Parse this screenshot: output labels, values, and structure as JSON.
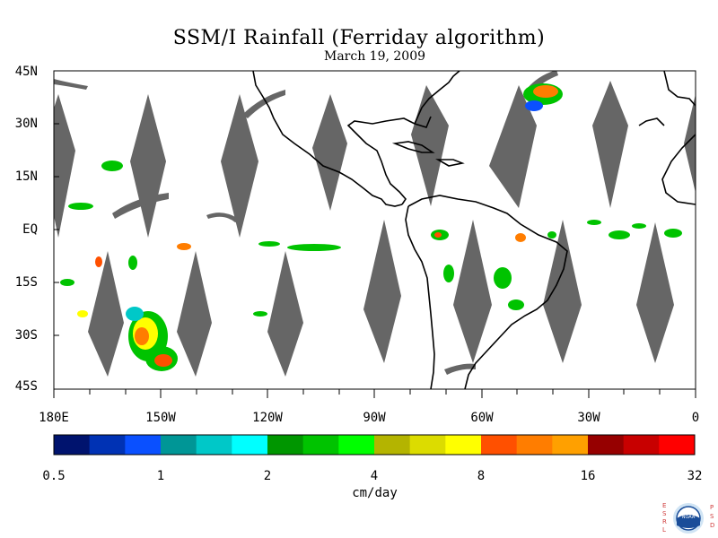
{
  "title": "SSM/I Rainfall (Ferriday algorithm)",
  "date": "March 19, 2009",
  "units": "cm/day",
  "y_axis_labels": [
    "45N",
    "30N",
    "15N",
    "EQ",
    "15S",
    "30S",
    "45S"
  ],
  "x_axis_labels": [
    "180E",
    "150W",
    "120W",
    "90W",
    "60W",
    "30W",
    "0"
  ],
  "colorbar": {
    "tick_labels": [
      "0.5",
      "1",
      "2",
      "4",
      "8",
      "16",
      "32"
    ],
    "colors": [
      "#00136e",
      "#0032b4",
      "#0a50ff",
      "#009696",
      "#00c8c8",
      "#00ffff",
      "#009600",
      "#00c300",
      "#00ff00",
      "#b4b400",
      "#dcdc00",
      "#ffff00",
      "#ff5000",
      "#ff7d00",
      "#ffa000",
      "#960000",
      "#c80000",
      "#ff0000"
    ]
  },
  "map": {
    "lon_range": [
      -180,
      0
    ],
    "lat_range": [
      -45,
      45
    ],
    "swath_gap_color": "#666666",
    "land_outline_color": "#000000"
  },
  "logo": {
    "left_letters": "ESRL",
    "right_letters": "PSD",
    "center_text": "NOAA"
  }
}
